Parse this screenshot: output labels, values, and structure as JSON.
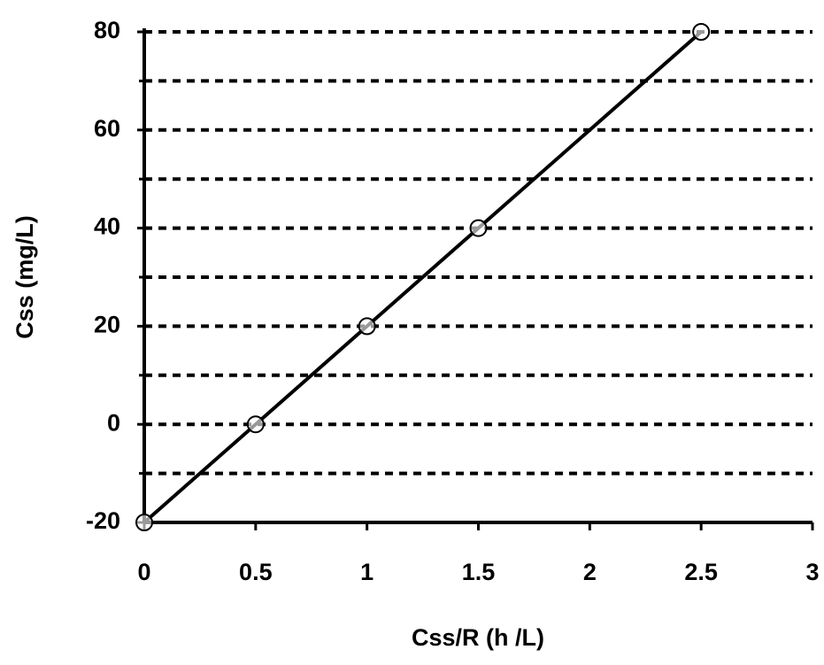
{
  "chart_data": {
    "type": "scatter",
    "x_label": "Css/R (h /L)",
    "y_label": "Css (mg/L)",
    "x": [
      0,
      0.5,
      1,
      1.5,
      2.5
    ],
    "series": [
      {
        "color": "#000000",
        "values": [
          -20,
          0,
          20,
          40,
          80
        ]
      }
    ],
    "xlim": [
      0,
      3
    ],
    "xticks": [
      0,
      0.5,
      1,
      1.5,
      2,
      2.5,
      3
    ],
    "ylim": [
      -20,
      80
    ],
    "yticks": [
      -20,
      0,
      20,
      40,
      60,
      80
    ],
    "y_minor_ticks": [
      -10,
      10,
      30,
      50,
      70
    ],
    "grid": true
  }
}
